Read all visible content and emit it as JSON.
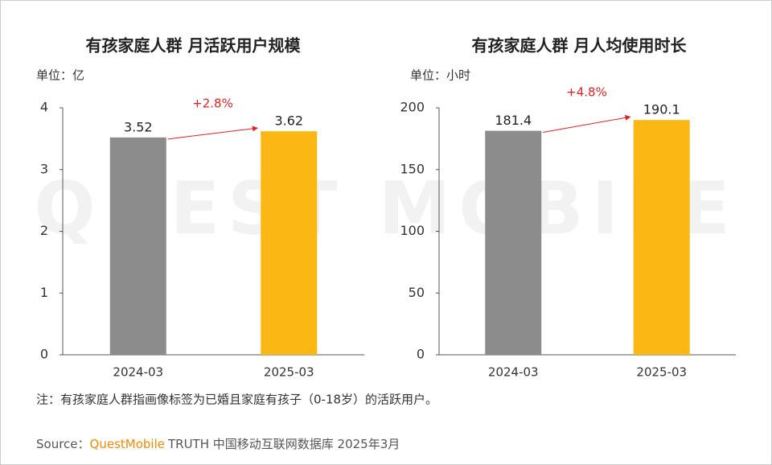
{
  "watermark": "QUEST MOBILE",
  "chart_data": [
    {
      "type": "bar",
      "title": "有孩家庭人群 月活跃用户规模",
      "unit": "单位：亿",
      "categories": [
        "2024-03",
        "2025-03"
      ],
      "values": [
        3.52,
        3.62
      ],
      "colors": [
        "#8c8c8c",
        "#fbb713"
      ],
      "ylim": [
        0,
        4
      ],
      "yticks": [
        0,
        1,
        2,
        3,
        4
      ],
      "annotation": "+2.8%"
    },
    {
      "type": "bar",
      "title": "有孩家庭人群 月人均使用时长",
      "unit": "单位：小时",
      "categories": [
        "2024-03",
        "2025-03"
      ],
      "values": [
        181.4,
        190.1
      ],
      "colors": [
        "#8c8c8c",
        "#fbb713"
      ],
      "ylim": [
        0,
        200
      ],
      "yticks": [
        0,
        50,
        100,
        150,
        200
      ],
      "annotation": "+4.8%"
    }
  ],
  "note": "注：有孩家庭人群指画像标签为已婚且家庭有孩子（0-18岁）的活跃用户。",
  "source": {
    "label": "Source：",
    "brand": "QuestMobile",
    "text": "TRUTH 中国移动互联网数据库 2025年3月"
  }
}
